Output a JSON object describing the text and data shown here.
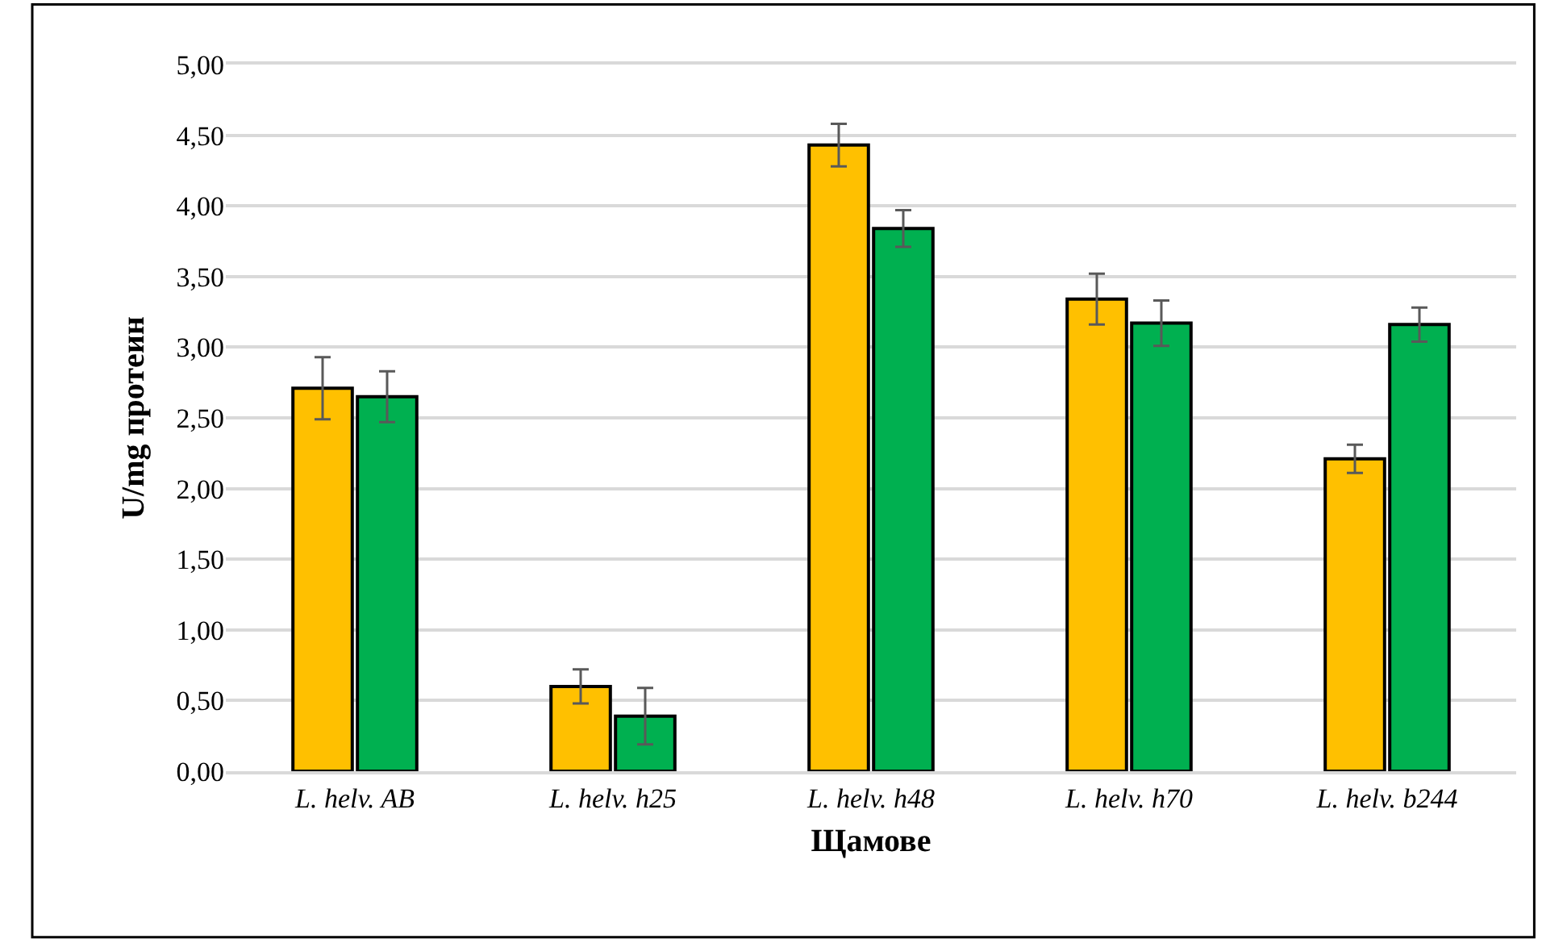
{
  "chart_data": {
    "type": "bar",
    "xlabel": "Щамове",
    "ylabel": "U/mg протеин",
    "categories": [
      "L. helv. AB",
      "L. helv. h25",
      "L. helv. h48",
      "L. helv. h70",
      "L. helv. b244"
    ],
    "series": [
      {
        "color": "#ffc000",
        "values": [
          2.71,
          0.6,
          4.43,
          3.34,
          2.21
        ],
        "errors": [
          0.22,
          0.12,
          0.15,
          0.18,
          0.1
        ]
      },
      {
        "color": "#00b050",
        "values": [
          2.65,
          0.39,
          3.84,
          3.17,
          3.16
        ],
        "errors": [
          0.18,
          0.2,
          0.13,
          0.16,
          0.12
        ]
      }
    ],
    "ylim": [
      0,
      5
    ],
    "yticks": [
      {
        "value": 0,
        "label": "0,00"
      },
      {
        "value": 0.5,
        "label": "0,50"
      },
      {
        "value": 1,
        "label": "1,00"
      },
      {
        "value": 1.5,
        "label": "1,50"
      },
      {
        "value": 2,
        "label": "2,00"
      },
      {
        "value": 2.5,
        "label": "2,50"
      },
      {
        "value": 3,
        "label": "3,00"
      },
      {
        "value": 3.5,
        "label": "3,50"
      },
      {
        "value": 4,
        "label": "4,00"
      },
      {
        "value": 4.5,
        "label": "4,50"
      },
      {
        "value": 5,
        "label": "5,00"
      }
    ],
    "grid": "y"
  }
}
